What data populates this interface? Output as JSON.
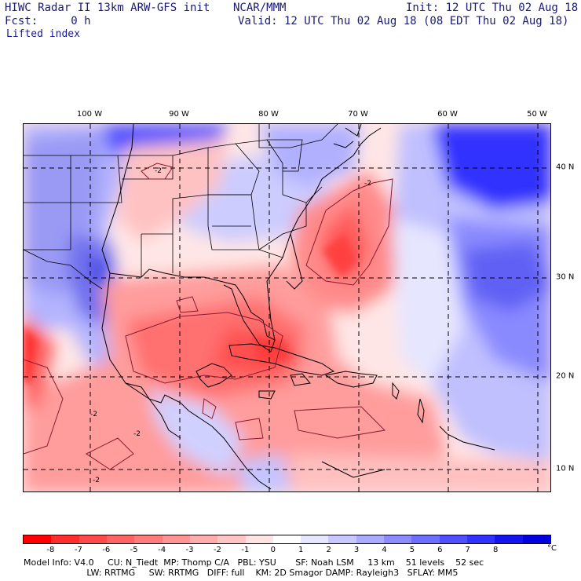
{
  "header": {
    "left_line1": "HIWC Radar II 13km ARW-GFS init",
    "center_line1": "NCAR/MMM",
    "right_line1": "Init: 12 UTC Thu 02 Aug 18",
    "left_line2": "Fcst:     0 h",
    "right_line2": "Valid: 12 UTC Thu 02 Aug 18 (08 EDT Thu 02 Aug 18)",
    "field_name": "Lifted index"
  },
  "map": {
    "longitude_labels": [
      "100 W",
      "90 W",
      "80 W",
      "70 W",
      "60 W",
      "50 W"
    ],
    "latitude_labels": [
      "40 N",
      "30 N",
      "20 N",
      "10 N"
    ],
    "contour_label": "-2"
  },
  "colorbar": {
    "ticks": [
      "-8",
      "-7",
      "-6",
      "-5",
      "-4",
      "-3",
      "-2",
      "-1",
      "0",
      "1",
      "2",
      "3",
      "4",
      "5",
      "6",
      "7",
      "8"
    ],
    "unit": "°C",
    "colors": [
      "#ff0000",
      "#ff2e2e",
      "#ff4a4a",
      "#ff6464",
      "#ff7c7c",
      "#ff9494",
      "#ffacac",
      "#ffc4c4",
      "#ffe4e4",
      "#ffffff",
      "#e6e6ff",
      "#c8c8ff",
      "#aaaaff",
      "#8c8cff",
      "#6e6eff",
      "#5050ff",
      "#3232ff",
      "#1414f0",
      "#0000e0"
    ]
  },
  "footer": {
    "line1": "Model Info: V4.0     CU: N_Tiedt  MP: Thomp C/A   PBL: YSU       SF: Noah LSM     13 km    51 levels    52 sec",
    "line2": "                       LW: RRTMG     SW: RRTMG   DIFF: full    KM: 2D Smagor DAMP: Rayleigh3   SFLAY: MM5"
  }
}
